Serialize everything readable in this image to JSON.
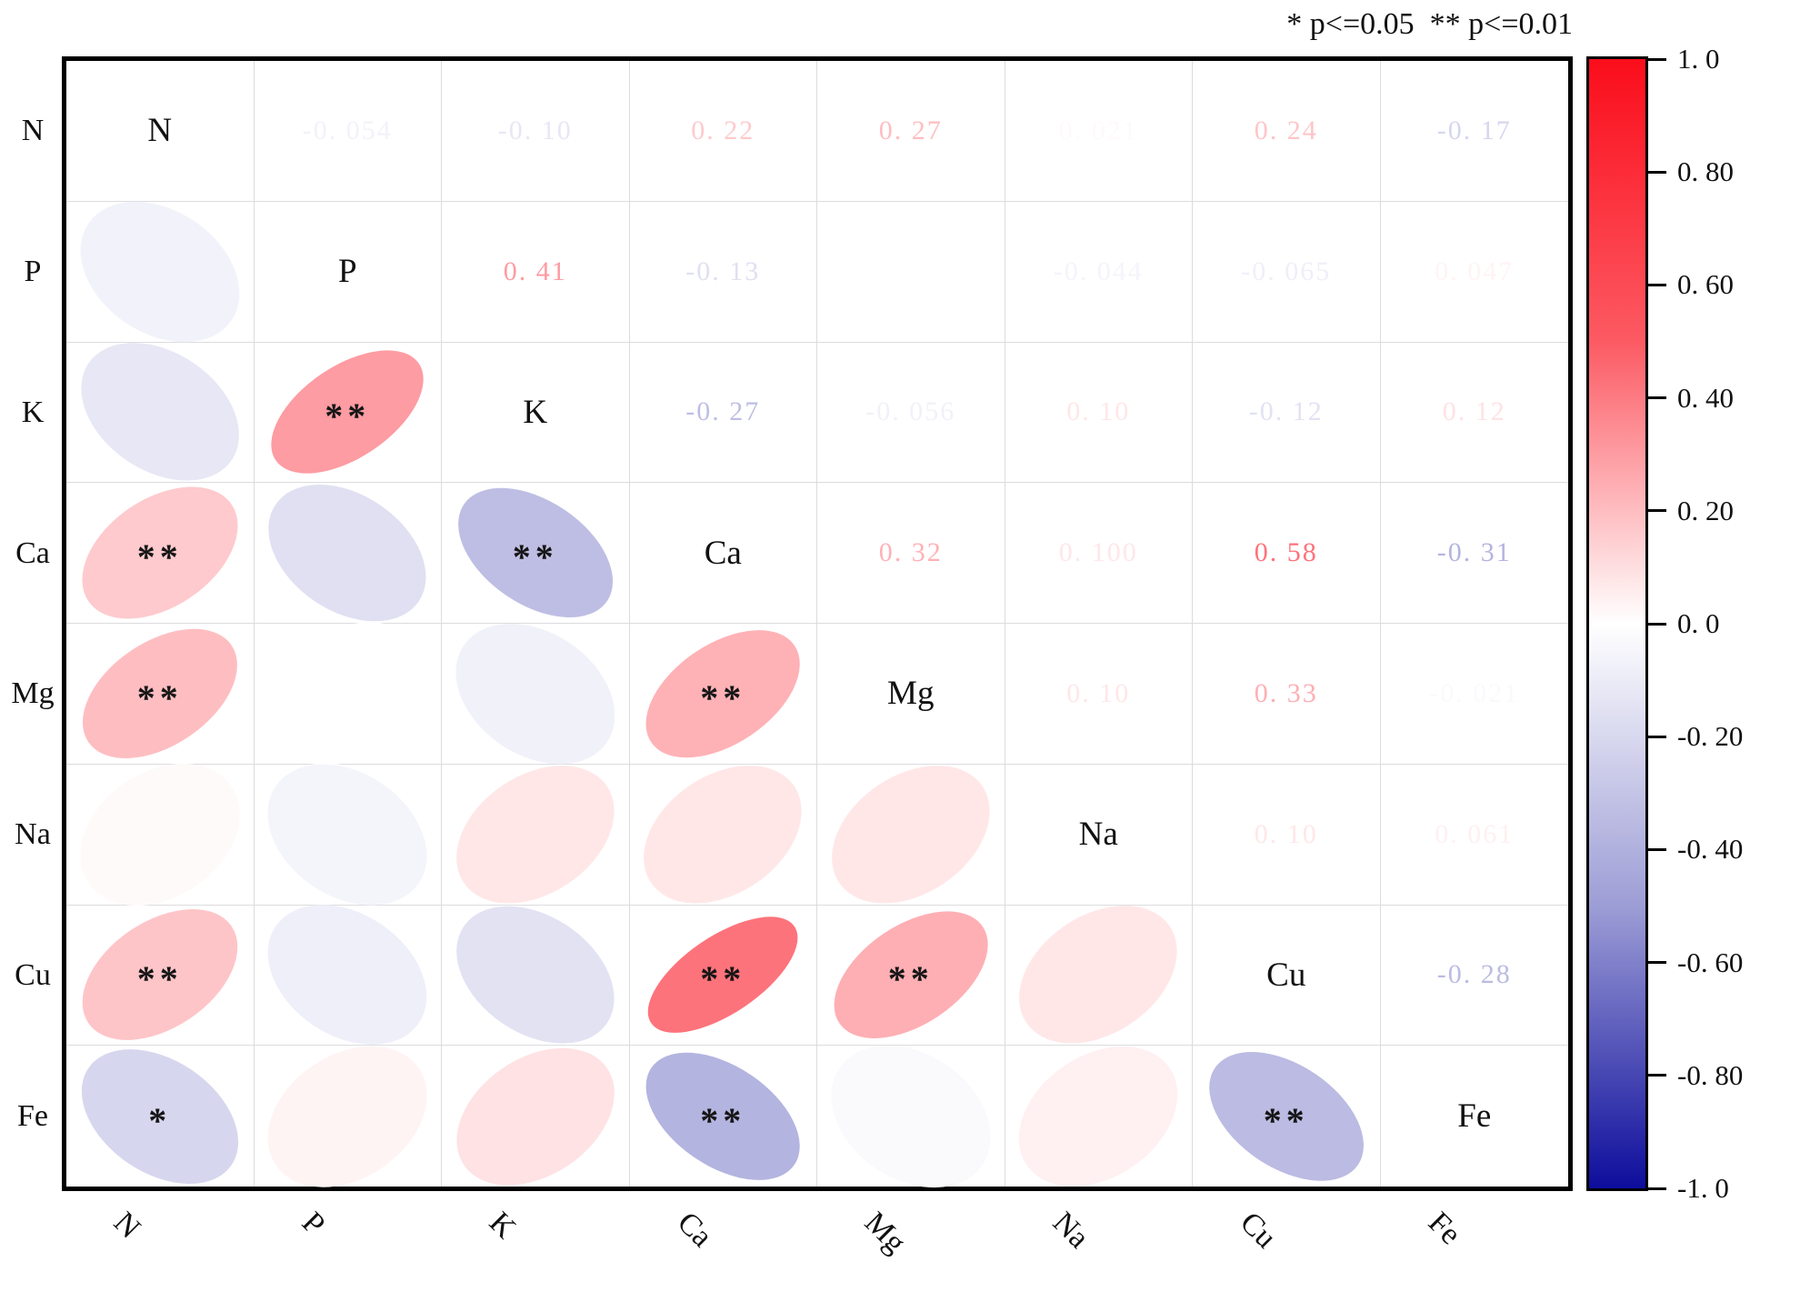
{
  "annotation": "* p<=0.05  ** p<=0.01",
  "variables": [
    "N",
    "P",
    "K",
    "Ca",
    "Mg",
    "Na",
    "Cu",
    "Fe"
  ],
  "colorbar": {
    "max_color": "#fb0d1b",
    "min_color": "#0d0d9c",
    "ticks": [
      {
        "value": 1.0,
        "label": "1. 0"
      },
      {
        "value": 0.8,
        "label": "0. 80"
      },
      {
        "value": 0.6,
        "label": "0. 60"
      },
      {
        "value": 0.4,
        "label": "0. 40"
      },
      {
        "value": 0.2,
        "label": "0. 20"
      },
      {
        "value": 0.0,
        "label": "0. 0"
      },
      {
        "value": -0.2,
        "label": "-0. 20"
      },
      {
        "value": -0.4,
        "label": "-0. 40"
      },
      {
        "value": -0.6,
        "label": "-0. 60"
      },
      {
        "value": -0.8,
        "label": "-0. 80"
      },
      {
        "value": -1.0,
        "label": "-1. 0"
      }
    ]
  },
  "chart_data": {
    "type": "heatmap",
    "subtype": "correlation-ellipse-matrix",
    "title": "",
    "variables": [
      "N",
      "P",
      "K",
      "Ca",
      "Mg",
      "Na",
      "Cu",
      "Fe"
    ],
    "value_range": [
      -1,
      1
    ],
    "upper_triangle": "correlation coefficient text colored by value",
    "lower_triangle": "ellipse glyphs colored by value with significance stars",
    "significance_note": "* p<=0.05  ** p<=0.01",
    "pairs": [
      {
        "a": "N",
        "b": "P",
        "r": -0.054,
        "label": "-0. 054",
        "sig": ""
      },
      {
        "a": "N",
        "b": "K",
        "r": -0.1,
        "label": "-0. 10",
        "sig": ""
      },
      {
        "a": "N",
        "b": "Ca",
        "r": 0.22,
        "label": "0. 22",
        "sig": "**"
      },
      {
        "a": "N",
        "b": "Mg",
        "r": 0.27,
        "label": "0. 27",
        "sig": "**"
      },
      {
        "a": "N",
        "b": "Na",
        "r": 0.021,
        "label": "0. 021",
        "sig": ""
      },
      {
        "a": "N",
        "b": "Cu",
        "r": 0.24,
        "label": "0. 24",
        "sig": "**"
      },
      {
        "a": "N",
        "b": "Fe",
        "r": -0.17,
        "label": "-0. 17",
        "sig": "*"
      },
      {
        "a": "P",
        "b": "K",
        "r": 0.41,
        "label": "0. 41",
        "sig": "**"
      },
      {
        "a": "P",
        "b": "Ca",
        "r": -0.13,
        "label": "-0. 13",
        "sig": ""
      },
      {
        "a": "P",
        "b": "Mg",
        "r": 0.0,
        "label": "",
        "sig": ""
      },
      {
        "a": "P",
        "b": "Na",
        "r": -0.044,
        "label": "-0. 044",
        "sig": ""
      },
      {
        "a": "P",
        "b": "Cu",
        "r": -0.065,
        "label": "-0. 065",
        "sig": ""
      },
      {
        "a": "P",
        "b": "Fe",
        "r": 0.047,
        "label": "0. 047",
        "sig": ""
      },
      {
        "a": "K",
        "b": "Ca",
        "r": -0.27,
        "label": "-0. 27",
        "sig": "**"
      },
      {
        "a": "K",
        "b": "Mg",
        "r": -0.056,
        "label": "-0. 056",
        "sig": ""
      },
      {
        "a": "K",
        "b": "Na",
        "r": 0.1,
        "label": "0. 10",
        "sig": ""
      },
      {
        "a": "K",
        "b": "Cu",
        "r": -0.12,
        "label": "-0. 12",
        "sig": ""
      },
      {
        "a": "K",
        "b": "Fe",
        "r": 0.12,
        "label": "0. 12",
        "sig": ""
      },
      {
        "a": "Ca",
        "b": "Mg",
        "r": 0.32,
        "label": "0. 32",
        "sig": "**"
      },
      {
        "a": "Ca",
        "b": "Na",
        "r": 0.1,
        "label": "0. 100",
        "sig": ""
      },
      {
        "a": "Ca",
        "b": "Cu",
        "r": 0.58,
        "label": "0. 58",
        "sig": "**"
      },
      {
        "a": "Ca",
        "b": "Fe",
        "r": -0.31,
        "label": "-0. 31",
        "sig": "**"
      },
      {
        "a": "Mg",
        "b": "Na",
        "r": 0.1,
        "label": "0. 10",
        "sig": ""
      },
      {
        "a": "Mg",
        "b": "Cu",
        "r": 0.33,
        "label": "0. 33",
        "sig": "**"
      },
      {
        "a": "Mg",
        "b": "Fe",
        "r": -0.021,
        "label": "-0. 021",
        "sig": ""
      },
      {
        "a": "Na",
        "b": "Cu",
        "r": 0.1,
        "label": "0. 10",
        "sig": ""
      },
      {
        "a": "Na",
        "b": "Fe",
        "r": 0.061,
        "label": "0. 061",
        "sig": ""
      },
      {
        "a": "Cu",
        "b": "Fe",
        "r": -0.28,
        "label": "-0. 28",
        "sig": "**"
      }
    ]
  }
}
